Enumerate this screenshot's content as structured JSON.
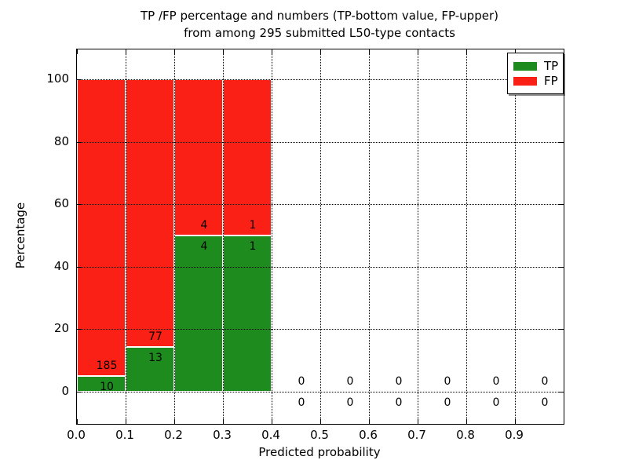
{
  "title": {
    "line1": "TP /FP percentage and numbers (TP-bottom value, FP-upper)",
    "line2": "from among 295 submitted L50-type contacts"
  },
  "axes": {
    "xlabel": "Predicted probability",
    "ylabel": "Percentage",
    "yticks": [
      0,
      20,
      40,
      60,
      80,
      100
    ],
    "xticks": [
      "0.0",
      "0.1",
      "0.2",
      "0.3",
      "0.4",
      "0.5",
      "0.6",
      "0.7",
      "0.8",
      "0.9"
    ],
    "ylim": [
      -10,
      110
    ],
    "xlim": [
      0,
      1
    ],
    "grid": "dotted, drawn above bars"
  },
  "legend": {
    "position": "upper right",
    "items": [
      {
        "label": "TP",
        "color": "#1e8b1e"
      },
      {
        "label": "FP",
        "color": "#fb2016"
      }
    ]
  },
  "colors": {
    "tp": "#1e8b1e",
    "fp": "#fb2016",
    "bar_edge": "#ffffff",
    "grid": "#000000",
    "background": "#ffffff"
  },
  "chart_data": {
    "type": "bar",
    "stacked": true,
    "normalized_to_percent": true,
    "title": "TP /FP percentage and numbers (TP-bottom value, FP-upper) from among 295 submitted L50-type contacts",
    "xlabel": "Predicted probability",
    "ylabel": "Percentage",
    "total_contacts": 295,
    "bin_width": 0.1,
    "categories": [
      "0.0-0.1",
      "0.1-0.2",
      "0.2-0.3",
      "0.3-0.4",
      "0.4-0.5",
      "0.5-0.6",
      "0.6-0.7",
      "0.7-0.8",
      "0.8-0.9",
      "0.9-1.0"
    ],
    "series": [
      {
        "name": "TP",
        "counts": [
          10,
          13,
          4,
          1,
          0,
          0,
          0,
          0,
          0,
          0
        ]
      },
      {
        "name": "FP",
        "counts": [
          185,
          77,
          4,
          1,
          0,
          0,
          0,
          0,
          0,
          0
        ]
      }
    ],
    "bins": [
      {
        "x0": 0.0,
        "x1": 0.1,
        "tp": 10,
        "fp": 185
      },
      {
        "x0": 0.1,
        "x1": 0.2,
        "tp": 13,
        "fp": 77
      },
      {
        "x0": 0.2,
        "x1": 0.3,
        "tp": 4,
        "fp": 4
      },
      {
        "x0": 0.3,
        "x1": 0.4,
        "tp": 1,
        "fp": 1
      },
      {
        "x0": 0.4,
        "x1": 0.5,
        "tp": 0,
        "fp": 0
      },
      {
        "x0": 0.5,
        "x1": 0.6,
        "tp": 0,
        "fp": 0
      },
      {
        "x0": 0.6,
        "x1": 0.7,
        "tp": 0,
        "fp": 0
      },
      {
        "x0": 0.7,
        "x1": 0.8,
        "tp": 0,
        "fp": 0
      },
      {
        "x0": 0.8,
        "x1": 0.9,
        "tp": 0,
        "fp": 0
      },
      {
        "x0": 0.9,
        "x1": 1.0,
        "tp": 0,
        "fp": 0
      }
    ]
  }
}
